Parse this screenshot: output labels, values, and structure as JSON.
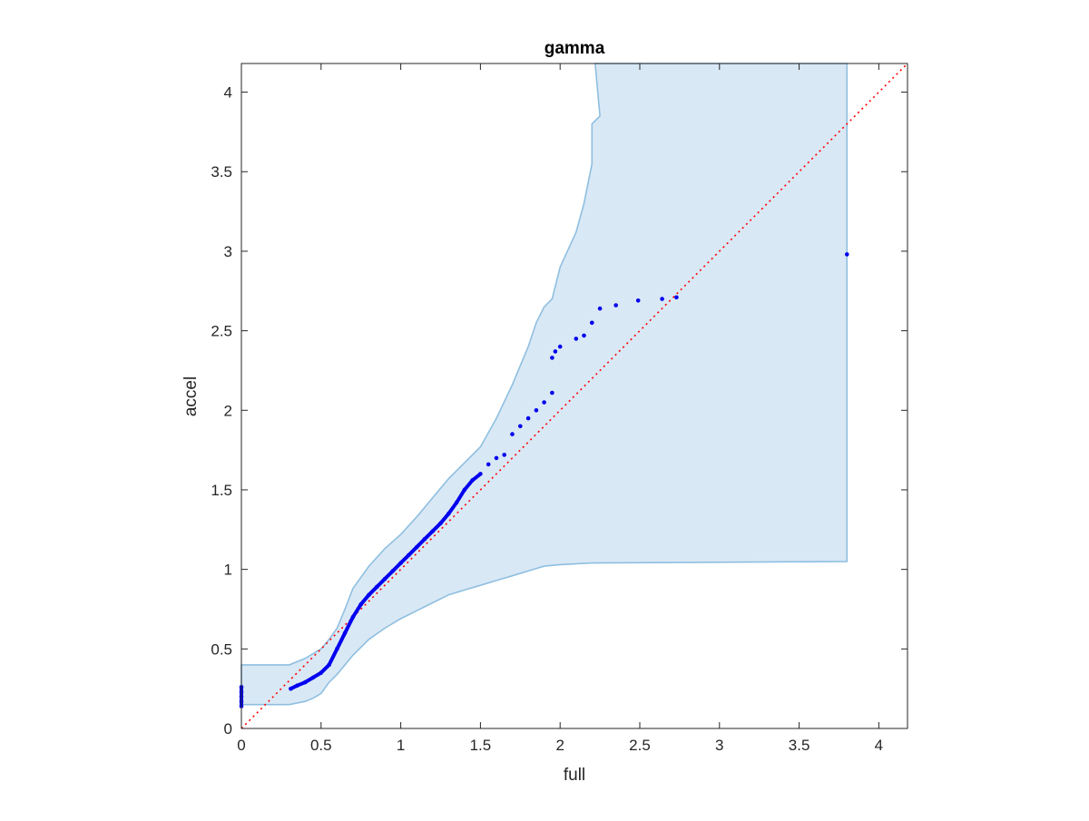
{
  "chart_data": {
    "type": "scatter",
    "title": "gamma",
    "xlabel": "full",
    "ylabel": "accel",
    "xlim": [
      0,
      4.18
    ],
    "ylim": [
      0,
      4.18
    ],
    "xticks": [
      "0",
      "0.5",
      "1",
      "1.5",
      "2",
      "2.5",
      "3",
      "3.5",
      "4"
    ],
    "yticks": [
      "0",
      "0.5",
      "1",
      "1.5",
      "2",
      "2.5",
      "3",
      "3.5",
      "4"
    ],
    "xtick_values": [
      0,
      0.5,
      1,
      1.5,
      2,
      2.5,
      3,
      3.5,
      4
    ],
    "ytick_values": [
      0,
      0.5,
      1,
      1.5,
      2,
      2.5,
      3,
      3.5,
      4
    ],
    "grid": false,
    "colors": {
      "points": "#0000ee",
      "reference_line": "#ff0000",
      "band_fill": "#d9e8f5",
      "band_edge": "#8fbfe0"
    },
    "reference_line": {
      "style": "dotted",
      "from": [
        0,
        0
      ],
      "to": [
        4.18,
        4.18
      ]
    },
    "confidence_band": {
      "upper": [
        [
          0,
          0.4
        ],
        [
          0.3,
          0.4
        ],
        [
          0.4,
          0.44
        ],
        [
          0.5,
          0.5
        ],
        [
          0.55,
          0.56
        ],
        [
          0.6,
          0.63
        ],
        [
          0.65,
          0.75
        ],
        [
          0.7,
          0.88
        ],
        [
          0.8,
          1.02
        ],
        [
          0.9,
          1.13
        ],
        [
          1.0,
          1.22
        ],
        [
          1.1,
          1.33
        ],
        [
          1.2,
          1.45
        ],
        [
          1.3,
          1.57
        ],
        [
          1.4,
          1.67
        ],
        [
          1.5,
          1.77
        ],
        [
          1.6,
          1.95
        ],
        [
          1.7,
          2.16
        ],
        [
          1.8,
          2.4
        ],
        [
          1.85,
          2.55
        ],
        [
          1.9,
          2.65
        ],
        [
          1.95,
          2.7
        ],
        [
          2.0,
          2.9
        ],
        [
          2.1,
          3.12
        ],
        [
          2.15,
          3.3
        ],
        [
          2.2,
          3.55
        ],
        [
          2.2,
          3.8
        ],
        [
          2.25,
          3.85
        ],
        [
          2.22,
          4.18
        ],
        [
          3.8,
          4.18
        ]
      ],
      "lower": [
        [
          3.8,
          1.05
        ],
        [
          2.2,
          1.04
        ],
        [
          2.0,
          1.03
        ],
        [
          1.9,
          1.02
        ],
        [
          1.8,
          0.99
        ],
        [
          1.7,
          0.96
        ],
        [
          1.6,
          0.93
        ],
        [
          1.5,
          0.9
        ],
        [
          1.4,
          0.87
        ],
        [
          1.3,
          0.84
        ],
        [
          1.2,
          0.79
        ],
        [
          1.1,
          0.74
        ],
        [
          1.0,
          0.69
        ],
        [
          0.9,
          0.63
        ],
        [
          0.8,
          0.56
        ],
        [
          0.7,
          0.46
        ],
        [
          0.6,
          0.34
        ],
        [
          0.55,
          0.29
        ],
        [
          0.5,
          0.22
        ],
        [
          0.45,
          0.19
        ],
        [
          0.4,
          0.17
        ],
        [
          0.3,
          0.15
        ],
        [
          0.0,
          0.15
        ]
      ]
    },
    "points": [
      [
        0.0,
        0.14
      ],
      [
        0.0,
        0.17
      ],
      [
        0.0,
        0.2
      ],
      [
        0.0,
        0.23
      ],
      [
        0.0,
        0.26
      ],
      [
        0.31,
        0.25
      ],
      [
        0.35,
        0.27
      ],
      [
        0.4,
        0.29
      ],
      [
        0.45,
        0.32
      ],
      [
        0.5,
        0.35
      ],
      [
        0.55,
        0.4
      ],
      [
        0.6,
        0.5
      ],
      [
        0.65,
        0.6
      ],
      [
        0.7,
        0.7
      ],
      [
        0.75,
        0.78
      ],
      [
        0.8,
        0.84
      ],
      [
        0.85,
        0.89
      ],
      [
        0.9,
        0.94
      ],
      [
        0.95,
        0.99
      ],
      [
        1.0,
        1.04
      ],
      [
        1.05,
        1.09
      ],
      [
        1.1,
        1.14
      ],
      [
        1.15,
        1.19
      ],
      [
        1.2,
        1.24
      ],
      [
        1.25,
        1.29
      ],
      [
        1.3,
        1.35
      ],
      [
        1.35,
        1.42
      ],
      [
        1.4,
        1.5
      ],
      [
        1.45,
        1.56
      ],
      [
        1.5,
        1.6
      ],
      [
        1.55,
        1.66
      ],
      [
        1.6,
        1.7
      ],
      [
        1.65,
        1.72
      ],
      [
        1.7,
        1.85
      ],
      [
        1.75,
        1.9
      ],
      [
        1.8,
        1.95
      ],
      [
        1.85,
        2.0
      ],
      [
        1.9,
        2.05
      ],
      [
        1.95,
        2.11
      ],
      [
        1.95,
        2.33
      ],
      [
        1.97,
        2.37
      ],
      [
        2.0,
        2.4
      ],
      [
        2.1,
        2.45
      ],
      [
        2.15,
        2.47
      ],
      [
        2.2,
        2.55
      ],
      [
        2.25,
        2.64
      ],
      [
        2.35,
        2.66
      ],
      [
        2.49,
        2.69
      ],
      [
        2.64,
        2.7
      ],
      [
        2.73,
        2.71
      ],
      [
        3.8,
        2.98
      ]
    ]
  }
}
